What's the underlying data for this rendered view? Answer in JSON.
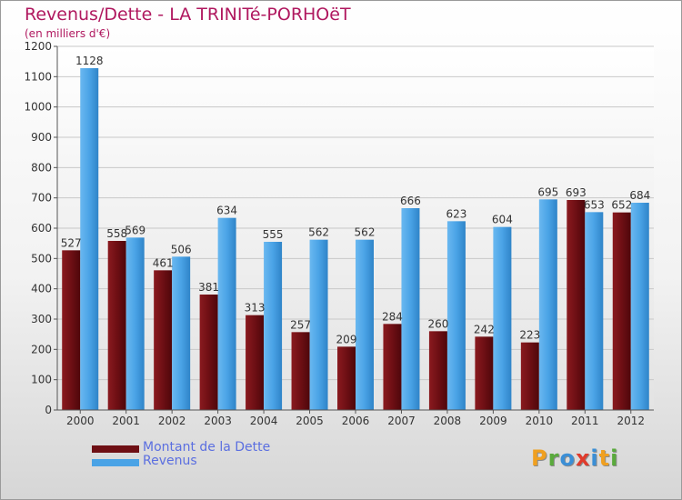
{
  "title": "Revenus/Dette - LA TRINITé-PORHOëT",
  "subtitle": "(en milliers d'€)",
  "logo": {
    "text": "Proxiti",
    "letters": [
      "P",
      "r",
      "o",
      "x",
      "i",
      "t",
      "i"
    ],
    "colors": [
      "#f0a020",
      "#5aaa3c",
      "#3b8fd6",
      "#e03b2c",
      "#3b8fd6",
      "#f0a020",
      "#5aaa3c"
    ]
  },
  "chart_data": {
    "type": "bar",
    "categories": [
      "2000",
      "2001",
      "2002",
      "2003",
      "2004",
      "2005",
      "2006",
      "2007",
      "2008",
      "2009",
      "2010",
      "2011",
      "2012"
    ],
    "series": [
      {
        "name": "Montant de la Dette",
        "color": "#6e0f14",
        "values": [
          527,
          558,
          461,
          381,
          313,
          257,
          209,
          284,
          260,
          242,
          223,
          693,
          652
        ]
      },
      {
        "name": "Revenus",
        "color": "#4aa3e6",
        "values": [
          1128,
          569,
          506,
          634,
          555,
          562,
          562,
          666,
          623,
          604,
          695,
          653,
          684
        ]
      }
    ],
    "ylim": [
      0,
      1200
    ],
    "yticks": [
      0,
      100,
      200,
      300,
      400,
      500,
      600,
      700,
      800,
      900,
      1000,
      1100,
      1200
    ],
    "grid": true,
    "legend_position": "bottom-left"
  }
}
